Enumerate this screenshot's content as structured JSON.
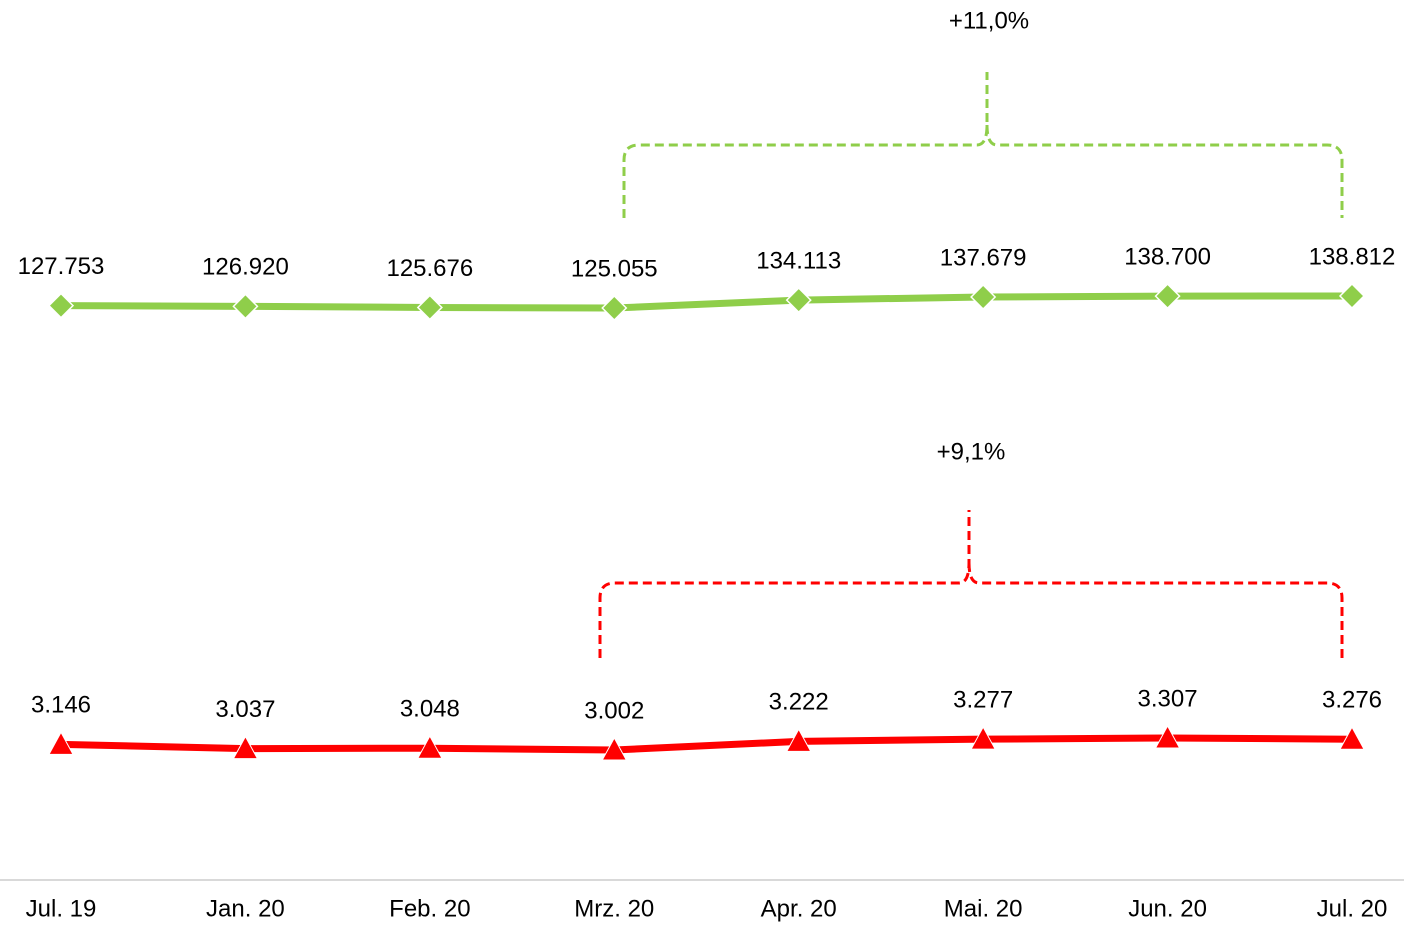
{
  "chart_data": {
    "type": "line",
    "categories": [
      "Jul. 19",
      "Jan. 20",
      "Feb. 20",
      "Mrz. 20",
      "Apr. 20",
      "Mai. 20",
      "Jun. 20",
      "Jul. 20"
    ],
    "series": [
      {
        "color": "#8fce4a",
        "marker": "diamond",
        "values": [
          127753,
          126920,
          125676,
          125055,
          134113,
          137679,
          138700,
          138812
        ],
        "value_labels": [
          "127.753",
          "126.920",
          "125.676",
          "125.055",
          "134.113",
          "137.679",
          "138.700",
          "138.812"
        ],
        "annotation": "+11,0%"
      },
      {
        "color": "#ff0000",
        "marker": "triangle",
        "values": [
          3146,
          3037,
          3048,
          3002,
          3222,
          3277,
          3307,
          3276
        ],
        "value_labels": [
          "3.146",
          "3.037",
          "3.048",
          "3.002",
          "3.222",
          "3.277",
          "3.307",
          "3.276"
        ],
        "annotation": "+9,1%"
      }
    ]
  }
}
